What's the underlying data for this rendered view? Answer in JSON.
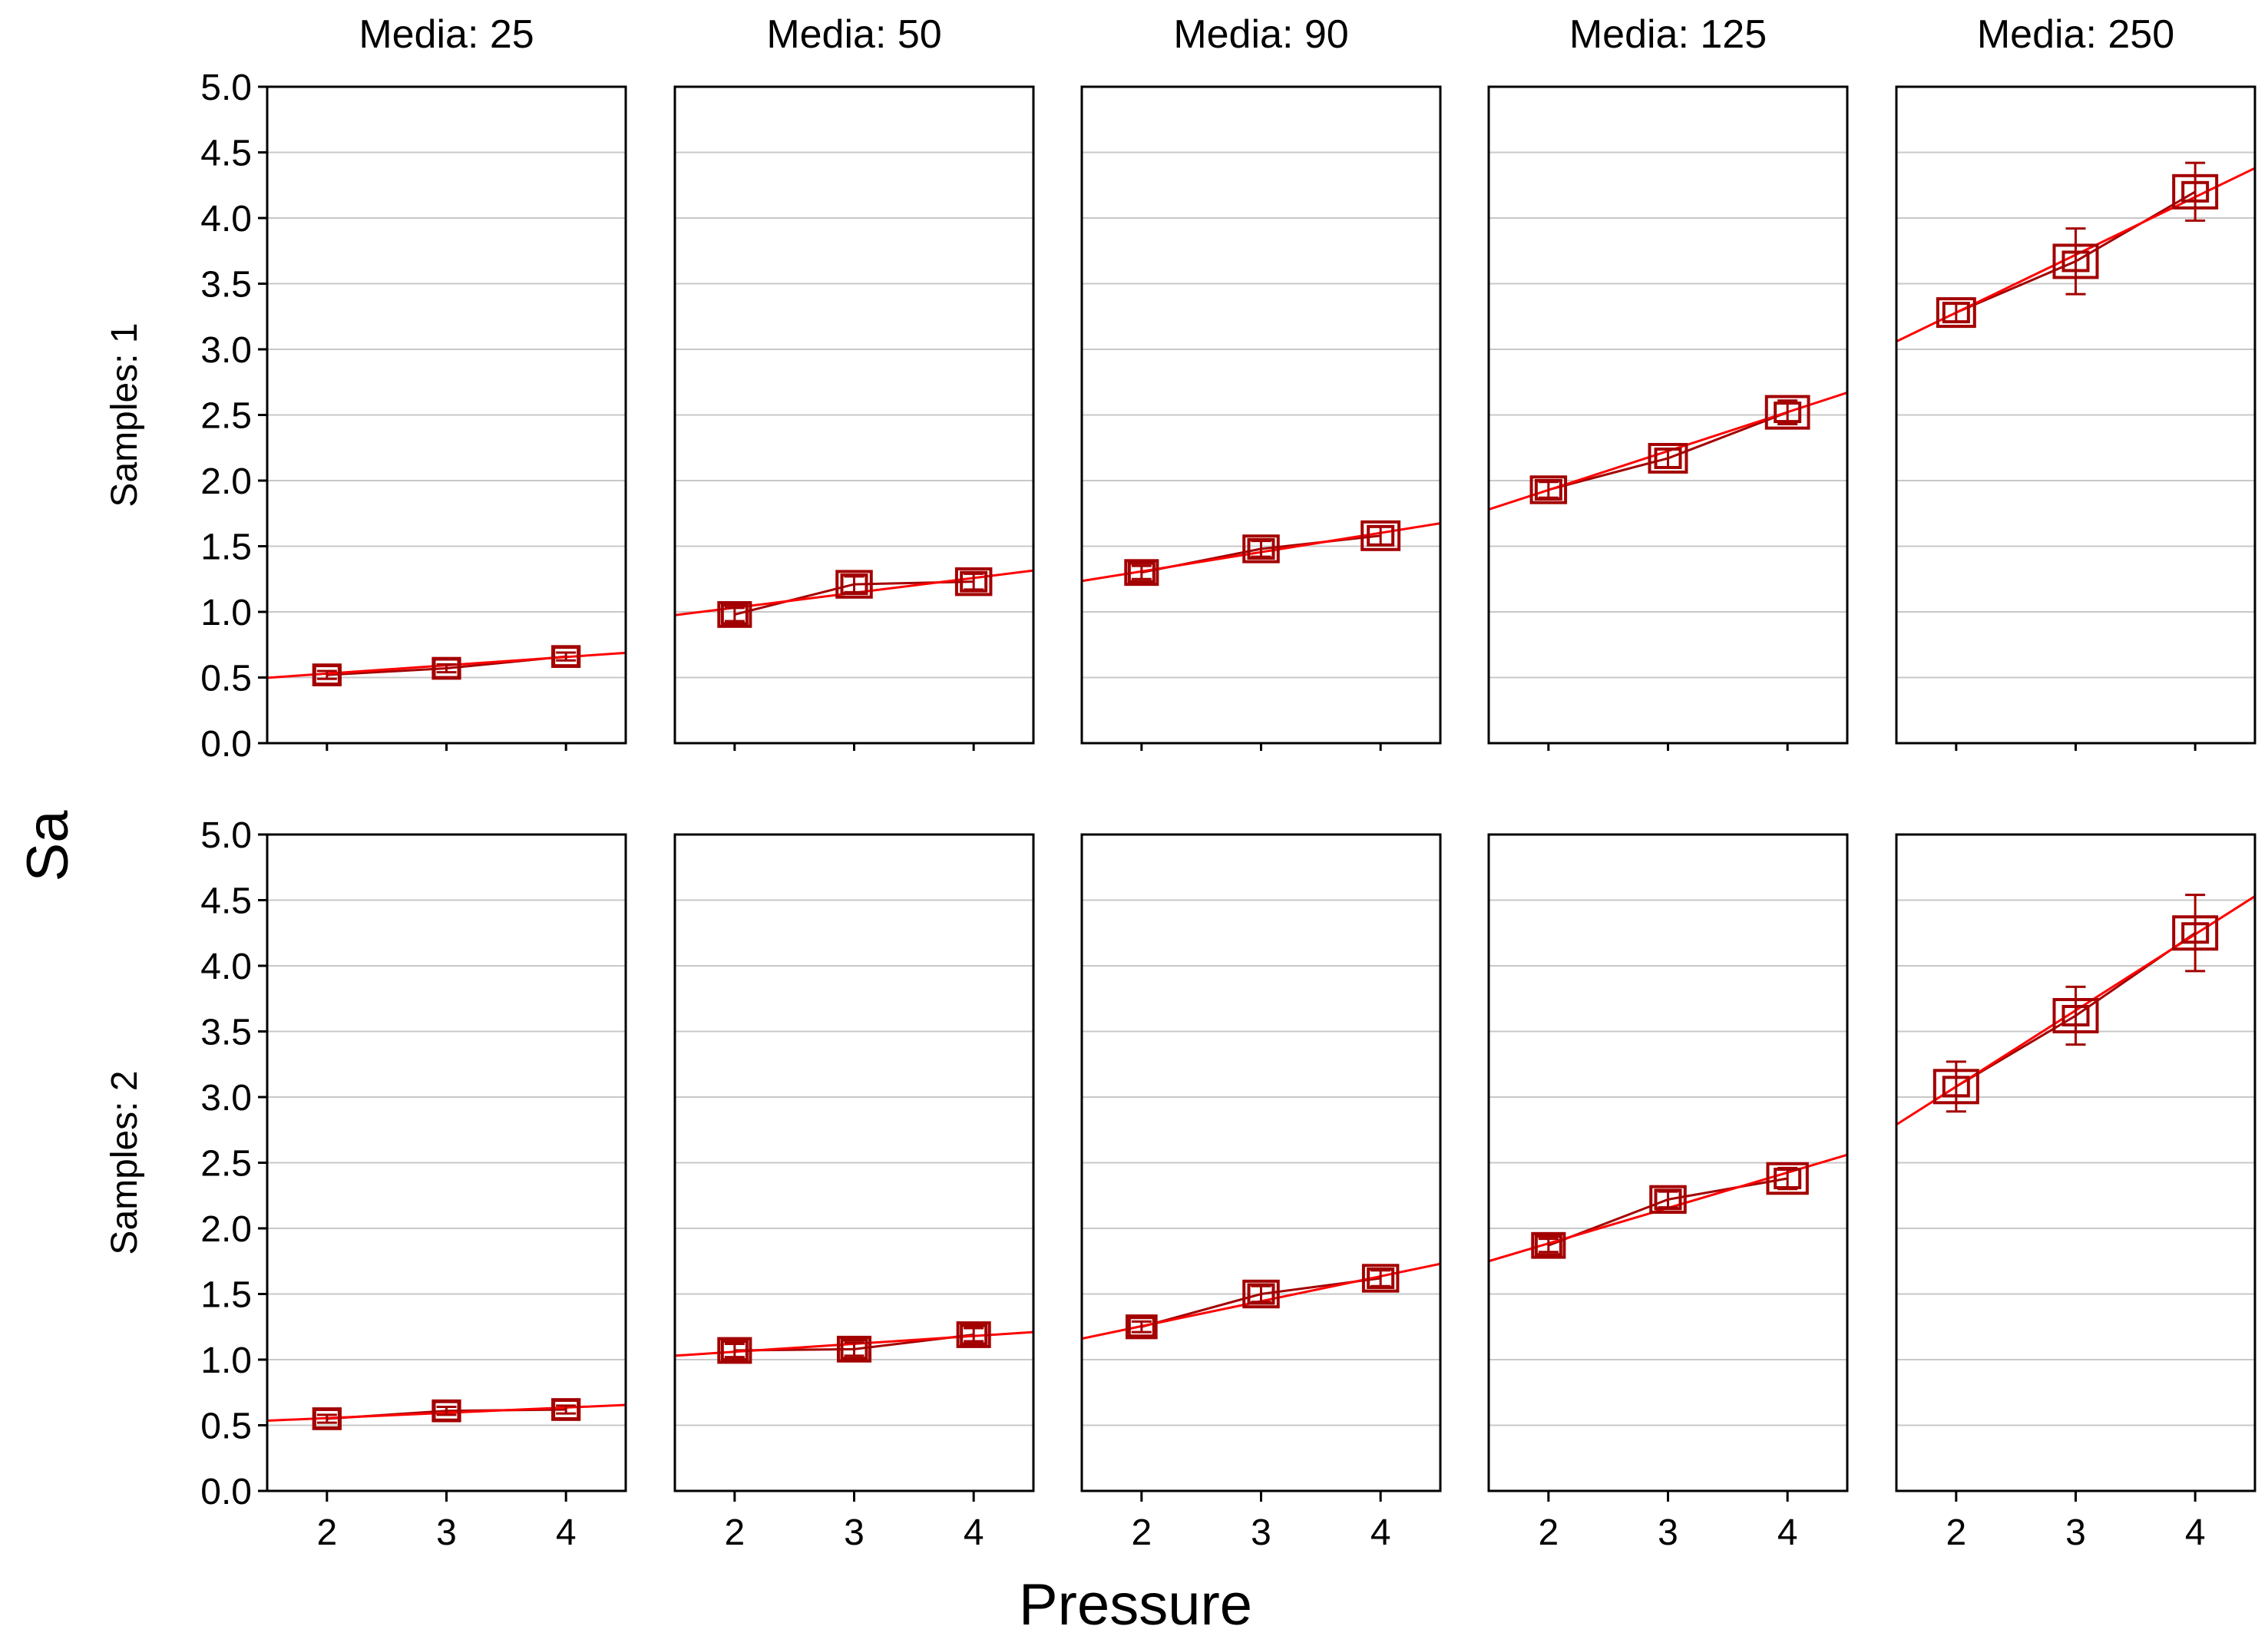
{
  "chart_data": {
    "type": "scatter",
    "xlabel": "Pressure",
    "ylabel": "Sa",
    "x_ticks": [
      2,
      3,
      4
    ],
    "y_ticks": [
      "0.0",
      "0.5",
      "1.0",
      "1.5",
      "2.0",
      "2.5",
      "3.0",
      "3.5",
      "4.0",
      "4.5",
      "5.0"
    ],
    "xlim": [
      1.5,
      4.5
    ],
    "ylim": [
      0,
      5
    ],
    "grid": "horizontal",
    "colors": {
      "marker": "#a30000",
      "fit": "#ff0000",
      "grid": "#c8c8c8"
    },
    "column_labels": [
      "Media: 25",
      "Media: 50",
      "Media: 90",
      "Media: 125",
      "Media: 250"
    ],
    "row_labels": [
      "Samples: 1",
      "Samples: 2"
    ],
    "panels": [
      [
        {
          "x": [
            2,
            3,
            4
          ],
          "y": [
            0.52,
            0.57,
            0.66
          ],
          "err": [
            0.03,
            0.03,
            0.03
          ],
          "fit": [
            0.498,
            0.688
          ]
        },
        {
          "x": [
            2,
            3,
            4
          ],
          "y": [
            0.98,
            1.21,
            1.23
          ],
          "err": [
            0.05,
            0.06,
            0.06
          ],
          "fit": [
            0.975,
            1.315
          ]
        },
        {
          "x": [
            2,
            3,
            4
          ],
          "y": [
            1.3,
            1.48,
            1.58
          ],
          "err": [
            0.05,
            0.06,
            0.07
          ],
          "fit": [
            1.235,
            1.675
          ]
        },
        {
          "x": [
            2,
            3,
            4
          ],
          "y": [
            1.93,
            2.17,
            2.52
          ],
          "err": [
            0.06,
            0.07,
            0.09
          ],
          "fit": [
            1.78,
            2.67
          ]
        },
        {
          "x": [
            2,
            3,
            4
          ],
          "y": [
            3.28,
            3.67,
            4.2
          ],
          "err": [
            0.07,
            0.25,
            0.22
          ],
          "fit": [
            3.06,
            4.38
          ]
        }
      ],
      [
        {
          "x": [
            2,
            3,
            4
          ],
          "y": [
            0.55,
            0.61,
            0.62
          ],
          "err": [
            0.03,
            0.03,
            0.03
          ],
          "fit": [
            0.535,
            0.655
          ]
        },
        {
          "x": [
            2,
            3,
            4
          ],
          "y": [
            1.07,
            1.08,
            1.19
          ],
          "err": [
            0.05,
            0.05,
            0.05
          ],
          "fit": [
            1.03,
            1.21
          ]
        },
        {
          "x": [
            2,
            3,
            4
          ],
          "y": [
            1.25,
            1.5,
            1.62
          ],
          "err": [
            0.04,
            0.06,
            0.06
          ],
          "fit": [
            1.16,
            1.73
          ]
        },
        {
          "x": [
            2,
            3,
            4
          ],
          "y": [
            1.87,
            2.22,
            2.38
          ],
          "err": [
            0.05,
            0.06,
            0.08
          ],
          "fit": [
            1.75,
            2.56
          ]
        },
        {
          "x": [
            2,
            3,
            4
          ],
          "y": [
            3.08,
            3.62,
            4.25
          ],
          "err": [
            0.19,
            0.22,
            0.29
          ],
          "fit": [
            2.79,
            4.53
          ]
        }
      ]
    ]
  }
}
